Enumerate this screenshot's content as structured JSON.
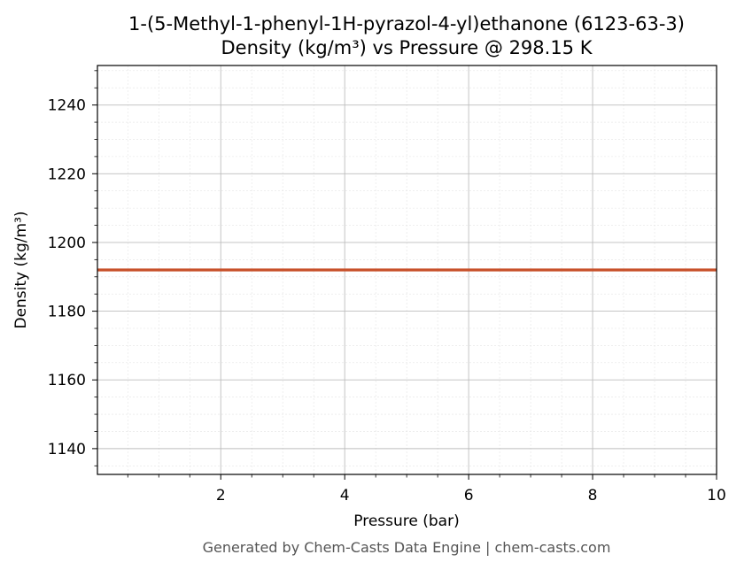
{
  "chart_data": {
    "type": "line",
    "title": "1-(5-Methyl-1-phenyl-1H-pyrazol-4-yl)ethanone (6123-63-3)",
    "subtitle": "Density (kg/m³) vs Pressure @ 298.15 K",
    "xlabel": "Pressure (bar)",
    "ylabel": "Density (kg/m³)",
    "xlim": [
      0.01,
      10
    ],
    "ylim": [
      1132.5,
      1251.5
    ],
    "x_ticks": [
      2,
      4,
      6,
      8,
      10
    ],
    "y_ticks": [
      1140,
      1160,
      1180,
      1200,
      1220,
      1240
    ],
    "grid": true,
    "legend": "none",
    "series": [
      {
        "color": "#c8502a",
        "x": [
          0.01,
          1,
          2,
          3,
          4,
          5,
          6,
          7,
          8,
          9,
          10
        ],
        "y": [
          1192,
          1192,
          1192,
          1192,
          1192,
          1192,
          1192,
          1192,
          1192,
          1192,
          1192
        ]
      }
    ]
  },
  "footer": "Generated by Chem-Casts Data Engine | chem-casts.com"
}
